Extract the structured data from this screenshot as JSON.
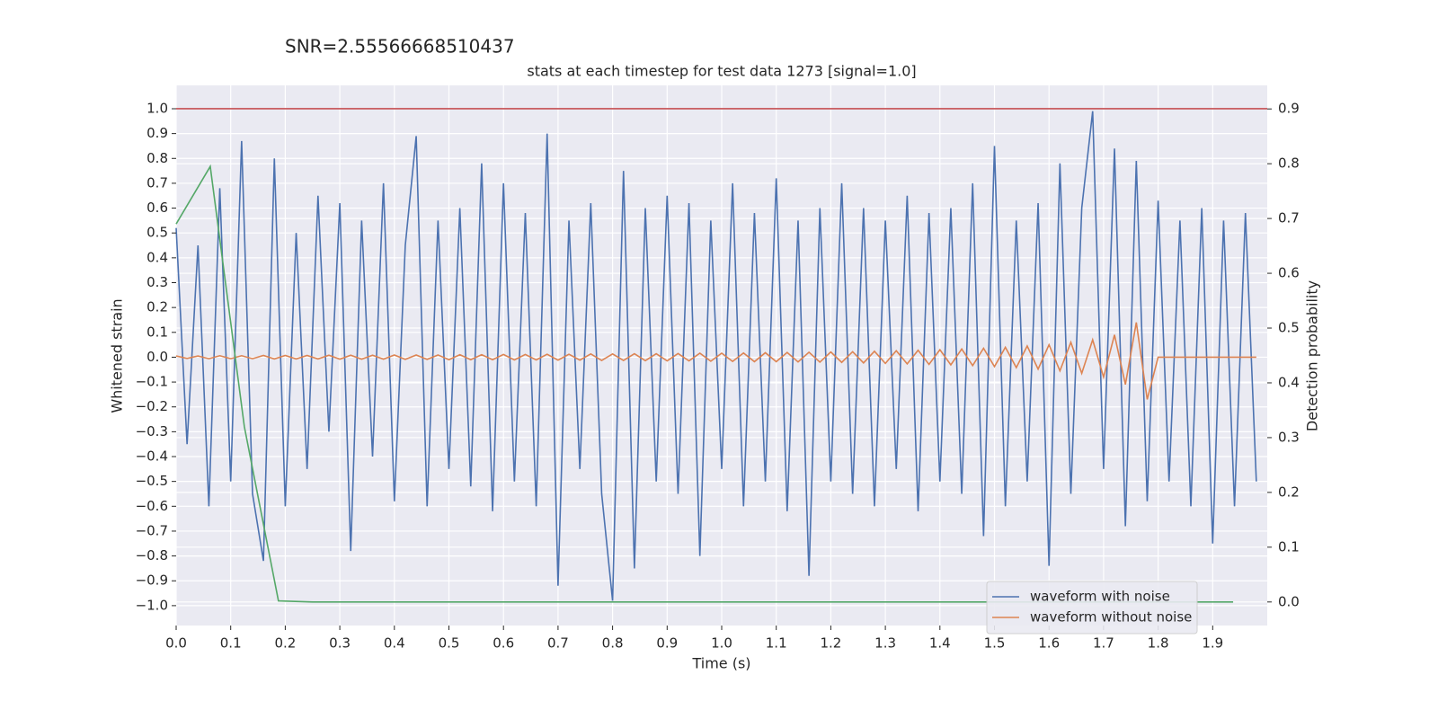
{
  "chart_data": {
    "type": "line",
    "suptitle": "SNR=2.55566668510437",
    "title": "stats at each timestep for test data 1273 [signal=1.0]",
    "xlabel": "Time (s)",
    "ylabel": "Whitened strain",
    "y2label": "Detection probability",
    "x": [
      0,
      0.02,
      0.04,
      0.06,
      0.08,
      0.1,
      0.12,
      0.14,
      0.16,
      0.18,
      0.2,
      0.22,
      0.24,
      0.26,
      0.28,
      0.3,
      0.32,
      0.34,
      0.36,
      0.38,
      0.4,
      0.42,
      0.44,
      0.46,
      0.48,
      0.5,
      0.52,
      0.54,
      0.56,
      0.58,
      0.6,
      0.62,
      0.64,
      0.66,
      0.68,
      0.7,
      0.72,
      0.74,
      0.76,
      0.78,
      0.8,
      0.82,
      0.84,
      0.86,
      0.88,
      0.9,
      0.92,
      0.94,
      0.96,
      0.98,
      1.0,
      1.02,
      1.04,
      1.06,
      1.08,
      1.1,
      1.12,
      1.14,
      1.16,
      1.18,
      1.2,
      1.22,
      1.24,
      1.26,
      1.28,
      1.3,
      1.32,
      1.34,
      1.36,
      1.38,
      1.4,
      1.42,
      1.44,
      1.46,
      1.48,
      1.5,
      1.52,
      1.54,
      1.56,
      1.58,
      1.6,
      1.62,
      1.64,
      1.66,
      1.68,
      1.7,
      1.72,
      1.74,
      1.76,
      1.78,
      1.8,
      1.82,
      1.84,
      1.86,
      1.88,
      1.9,
      1.92,
      1.94,
      1.96,
      1.98
    ],
    "series": [
      {
        "name": "waveform with noise",
        "color": "#4c72b0",
        "values": [
          0.52,
          -0.35,
          0.45,
          -0.6,
          0.68,
          -0.5,
          0.87,
          -0.55,
          -0.82,
          0.8,
          -0.6,
          0.5,
          -0.45,
          0.65,
          -0.3,
          0.62,
          -0.78,
          0.55,
          -0.4,
          0.7,
          -0.58,
          0.45,
          0.89,
          -0.6,
          0.55,
          -0.45,
          0.6,
          -0.52,
          0.78,
          -0.62,
          0.7,
          -0.5,
          0.58,
          -0.6,
          0.9,
          -0.92,
          0.55,
          -0.45,
          0.62,
          -0.55,
          -0.98,
          0.75,
          -0.85,
          0.6,
          -0.5,
          0.65,
          -0.55,
          0.62,
          -0.8,
          0.55,
          -0.45,
          0.7,
          -0.6,
          0.58,
          -0.5,
          0.72,
          -0.62,
          0.55,
          -0.88,
          0.6,
          -0.5,
          0.7,
          -0.55,
          0.6,
          -0.6,
          0.55,
          -0.45,
          0.65,
          -0.62,
          0.58,
          -0.5,
          0.6,
          -0.55,
          0.7,
          -0.72,
          0.85,
          -0.6,
          0.55,
          -0.5,
          0.62,
          -0.84,
          0.78,
          -0.55,
          0.6,
          0.99,
          -0.45,
          0.84,
          -0.68,
          0.79,
          -0.58,
          0.63,
          -0.5,
          0.55,
          -0.6,
          0.6,
          -0.75,
          0.55,
          -0.6,
          0.58,
          -0.5
        ]
      },
      {
        "name": "waveform without noise",
        "color": "#dd8452",
        "values": [
          0.005,
          -0.005,
          0.005,
          -0.006,
          0.006,
          -0.006,
          0.006,
          -0.006,
          0.007,
          -0.007,
          0.007,
          -0.007,
          0.007,
          -0.007,
          0.008,
          -0.008,
          0.008,
          -0.008,
          0.008,
          -0.008,
          0.009,
          -0.009,
          0.009,
          -0.009,
          0.009,
          -0.01,
          0.01,
          -0.01,
          0.01,
          -0.01,
          0.011,
          -0.011,
          0.011,
          -0.011,
          0.012,
          -0.012,
          0.012,
          -0.012,
          0.013,
          -0.013,
          0.013,
          -0.013,
          0.014,
          -0.014,
          0.014,
          -0.015,
          0.015,
          -0.015,
          0.016,
          -0.016,
          0.016,
          -0.017,
          0.017,
          -0.018,
          0.018,
          -0.018,
          0.019,
          -0.019,
          0.02,
          -0.02,
          0.021,
          -0.021,
          0.022,
          -0.023,
          0.024,
          -0.025,
          0.026,
          -0.027,
          0.028,
          -0.029,
          0.03,
          -0.031,
          0.033,
          -0.034,
          0.036,
          -0.038,
          0.04,
          -0.042,
          0.045,
          -0.048,
          0.05,
          -0.055,
          0.06,
          -0.065,
          0.07,
          -0.08,
          0.09,
          -0.11,
          0.14,
          -0.17,
          0,
          0,
          0,
          0,
          0,
          0,
          0,
          0,
          0,
          0
        ]
      },
      {
        "color": "#55a868",
        "axis": "y2",
        "x": [
          0,
          0.0625,
          0.125,
          0.1875,
          0.25,
          0.3125,
          0.375,
          0.4375,
          0.5,
          0.5625,
          0.625,
          0.6875,
          0.75,
          0.8125,
          0.875,
          0.9375,
          1.0,
          1.0625,
          1.125,
          1.1875,
          1.25,
          1.3125,
          1.375,
          1.4375,
          1.5,
          1.5625,
          1.625,
          1.6875,
          1.75,
          1.8125,
          1.875,
          1.9375
        ],
        "values": [
          0.69,
          0.795,
          0.32,
          0.002,
          0,
          0,
          0,
          0,
          0,
          0,
          0,
          0,
          0,
          0,
          0,
          0,
          0,
          0,
          0,
          0,
          0,
          0,
          0,
          0,
          0,
          0,
          0,
          0,
          0,
          0,
          0,
          0
        ]
      }
    ],
    "hline": {
      "y": 1.0,
      "color": "#c44e52"
    },
    "xlim": [
      0,
      2.0
    ],
    "ylim": [
      -1.08,
      1.094
    ],
    "y2lim": [
      -0.043,
      0.943
    ],
    "xticks": [
      {
        "value": 0,
        "label": "0.0"
      },
      {
        "value": 0.1,
        "label": "0.1"
      },
      {
        "value": 0.2,
        "label": "0.2"
      },
      {
        "value": 0.3,
        "label": "0.3"
      },
      {
        "value": 0.4,
        "label": "0.4"
      },
      {
        "value": 0.5,
        "label": "0.5"
      },
      {
        "value": 0.6,
        "label": "0.6"
      },
      {
        "value": 0.7,
        "label": "0.7"
      },
      {
        "value": 0.8,
        "label": "0.8"
      },
      {
        "value": 0.9,
        "label": "0.9"
      },
      {
        "value": 1.0,
        "label": "1.0"
      },
      {
        "value": 1.1,
        "label": "1.1"
      },
      {
        "value": 1.2,
        "label": "1.2"
      },
      {
        "value": 1.3,
        "label": "1.3"
      },
      {
        "value": 1.4,
        "label": "1.4"
      },
      {
        "value": 1.5,
        "label": "1.5"
      },
      {
        "value": 1.6,
        "label": "1.6"
      },
      {
        "value": 1.7,
        "label": "1.7"
      },
      {
        "value": 1.8,
        "label": "1.8"
      },
      {
        "value": 1.9,
        "label": "1.9"
      }
    ],
    "yticks": [
      {
        "value": -1.0,
        "label": "−1.0"
      },
      {
        "value": -0.9,
        "label": "−0.9"
      },
      {
        "value": -0.8,
        "label": "−0.8"
      },
      {
        "value": -0.7,
        "label": "−0.7"
      },
      {
        "value": -0.6,
        "label": "−0.6"
      },
      {
        "value": -0.5,
        "label": "−0.5"
      },
      {
        "value": -0.4,
        "label": "−0.4"
      },
      {
        "value": -0.3,
        "label": "−0.3"
      },
      {
        "value": -0.2,
        "label": "−0.2"
      },
      {
        "value": -0.1,
        "label": "−0.1"
      },
      {
        "value": 0,
        "label": "0.0"
      },
      {
        "value": 0.1,
        "label": "0.1"
      },
      {
        "value": 0.2,
        "label": "0.2"
      },
      {
        "value": 0.3,
        "label": "0.3"
      },
      {
        "value": 0.4,
        "label": "0.4"
      },
      {
        "value": 0.5,
        "label": "0.5"
      },
      {
        "value": 0.6,
        "label": "0.6"
      },
      {
        "value": 0.7,
        "label": "0.7"
      },
      {
        "value": 0.8,
        "label": "0.8"
      },
      {
        "value": 0.9,
        "label": "0.9"
      },
      {
        "value": 1.0,
        "label": "1.0"
      }
    ],
    "y2ticks": [
      {
        "value": 0,
        "label": "0.0"
      },
      {
        "value": 0.1,
        "label": "0.1"
      },
      {
        "value": 0.2,
        "label": "0.2"
      },
      {
        "value": 0.3,
        "label": "0.3"
      },
      {
        "value": 0.4,
        "label": "0.4"
      },
      {
        "value": 0.5,
        "label": "0.5"
      },
      {
        "value": 0.6,
        "label": "0.6"
      },
      {
        "value": 0.7,
        "label": "0.7"
      },
      {
        "value": 0.8,
        "label": "0.8"
      },
      {
        "value": 0.9,
        "label": "0.9"
      }
    ],
    "grid": true,
    "legend": "lower right"
  }
}
